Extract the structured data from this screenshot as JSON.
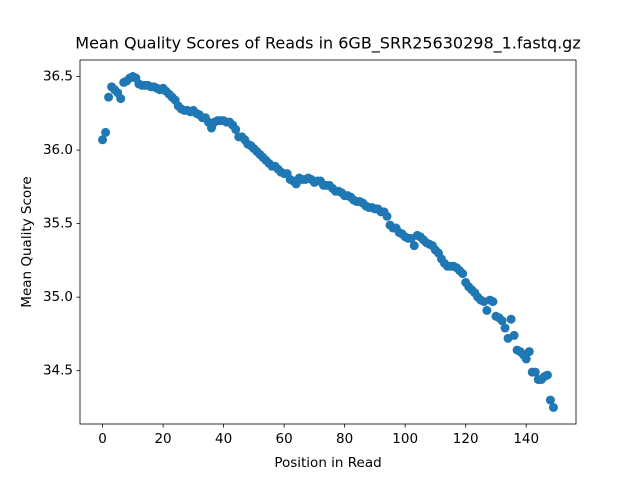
{
  "chart_data": {
    "type": "scatter",
    "title": "Mean Quality Scores of Reads in 6GB_SRR25630298_1.fastq.gz",
    "xlabel": "Position in Read",
    "ylabel": "Mean Quality Score",
    "color": "#1f77b4",
    "xlim": [
      -7.45,
      156.45
    ],
    "ylim": [
      34.1375,
      36.6125
    ],
    "xticks": [
      0,
      20,
      40,
      60,
      80,
      100,
      120,
      140
    ],
    "yticks": [
      34.5,
      {
        "value": 35,
        "label": "35.0"
      },
      35.5,
      {
        "value": 36,
        "label": "36.0"
      },
      36.5
    ],
    "x": [
      0,
      1,
      2,
      3,
      4,
      5,
      6,
      7,
      8,
      9,
      10,
      11,
      12,
      13,
      14,
      15,
      16,
      17,
      18,
      19,
      20,
      21,
      22,
      23,
      24,
      25,
      26,
      27,
      28,
      29,
      30,
      31,
      32,
      33,
      34,
      35,
      36,
      37,
      38,
      39,
      40,
      41,
      42,
      43,
      44,
      45,
      46,
      47,
      48,
      49,
      50,
      51,
      52,
      53,
      54,
      55,
      56,
      57,
      58,
      59,
      60,
      61,
      62,
      63,
      64,
      65,
      66,
      67,
      68,
      69,
      70,
      71,
      72,
      73,
      74,
      75,
      76,
      77,
      78,
      79,
      80,
      81,
      82,
      83,
      84,
      85,
      86,
      87,
      88,
      89,
      90,
      91,
      92,
      93,
      94,
      95,
      96,
      97,
      98,
      99,
      100,
      101,
      102,
      103,
      104,
      105,
      106,
      107,
      108,
      109,
      110,
      111,
      112,
      113,
      114,
      115,
      116,
      117,
      118,
      119,
      120,
      121,
      122,
      123,
      124,
      125,
      126,
      127,
      128,
      129,
      130,
      131,
      132,
      133,
      134,
      135,
      136,
      137,
      138,
      139,
      140,
      141,
      142,
      143,
      144,
      145,
      146,
      147,
      148,
      149
    ],
    "values": [
      36.07,
      36.12,
      36.36,
      36.43,
      36.41,
      36.39,
      36.35,
      36.46,
      36.47,
      36.49,
      36.5,
      36.49,
      36.45,
      36.44,
      36.44,
      36.44,
      36.43,
      36.43,
      36.42,
      36.41,
      36.42,
      36.4,
      36.38,
      36.36,
      36.34,
      36.3,
      36.28,
      36.27,
      36.27,
      36.26,
      36.27,
      36.25,
      36.24,
      36.22,
      36.22,
      36.19,
      36.15,
      36.19,
      36.2,
      36.2,
      36.2,
      36.19,
      36.19,
      36.17,
      36.14,
      36.09,
      36.09,
      36.07,
      36.04,
      36.03,
      36.01,
      35.99,
      35.97,
      35.95,
      35.93,
      35.91,
      35.89,
      35.89,
      35.87,
      35.85,
      35.84,
      35.84,
      35.8,
      35.79,
      35.77,
      35.81,
      35.8,
      35.8,
      35.81,
      35.8,
      35.78,
      35.79,
      35.79,
      35.76,
      35.76,
      35.76,
      35.74,
      35.72,
      35.72,
      35.71,
      35.69,
      35.69,
      35.68,
      35.66,
      35.65,
      35.65,
      35.64,
      35.62,
      35.61,
      35.61,
      35.6,
      35.6,
      35.58,
      35.58,
      35.55,
      35.49,
      35.47,
      35.47,
      35.44,
      35.43,
      35.41,
      35.4,
      35.4,
      35.35,
      35.42,
      35.41,
      35.39,
      35.37,
      35.36,
      35.35,
      35.32,
      35.3,
      35.26,
      35.23,
      35.21,
      35.21,
      35.21,
      35.2,
      35.18,
      35.16,
      35.1,
      35.07,
      35.05,
      35.03,
      35,
      34.98,
      34.97,
      34.91,
      34.98,
      34.97,
      34.87,
      34.86,
      34.84,
      34.79,
      34.72,
      34.85,
      34.74,
      34.64,
      34.63,
      34.61,
      34.58,
      34.63,
      34.49,
      34.49,
      34.44,
      34.44,
      34.46,
      34.47,
      34.3,
      34.25
    ]
  }
}
